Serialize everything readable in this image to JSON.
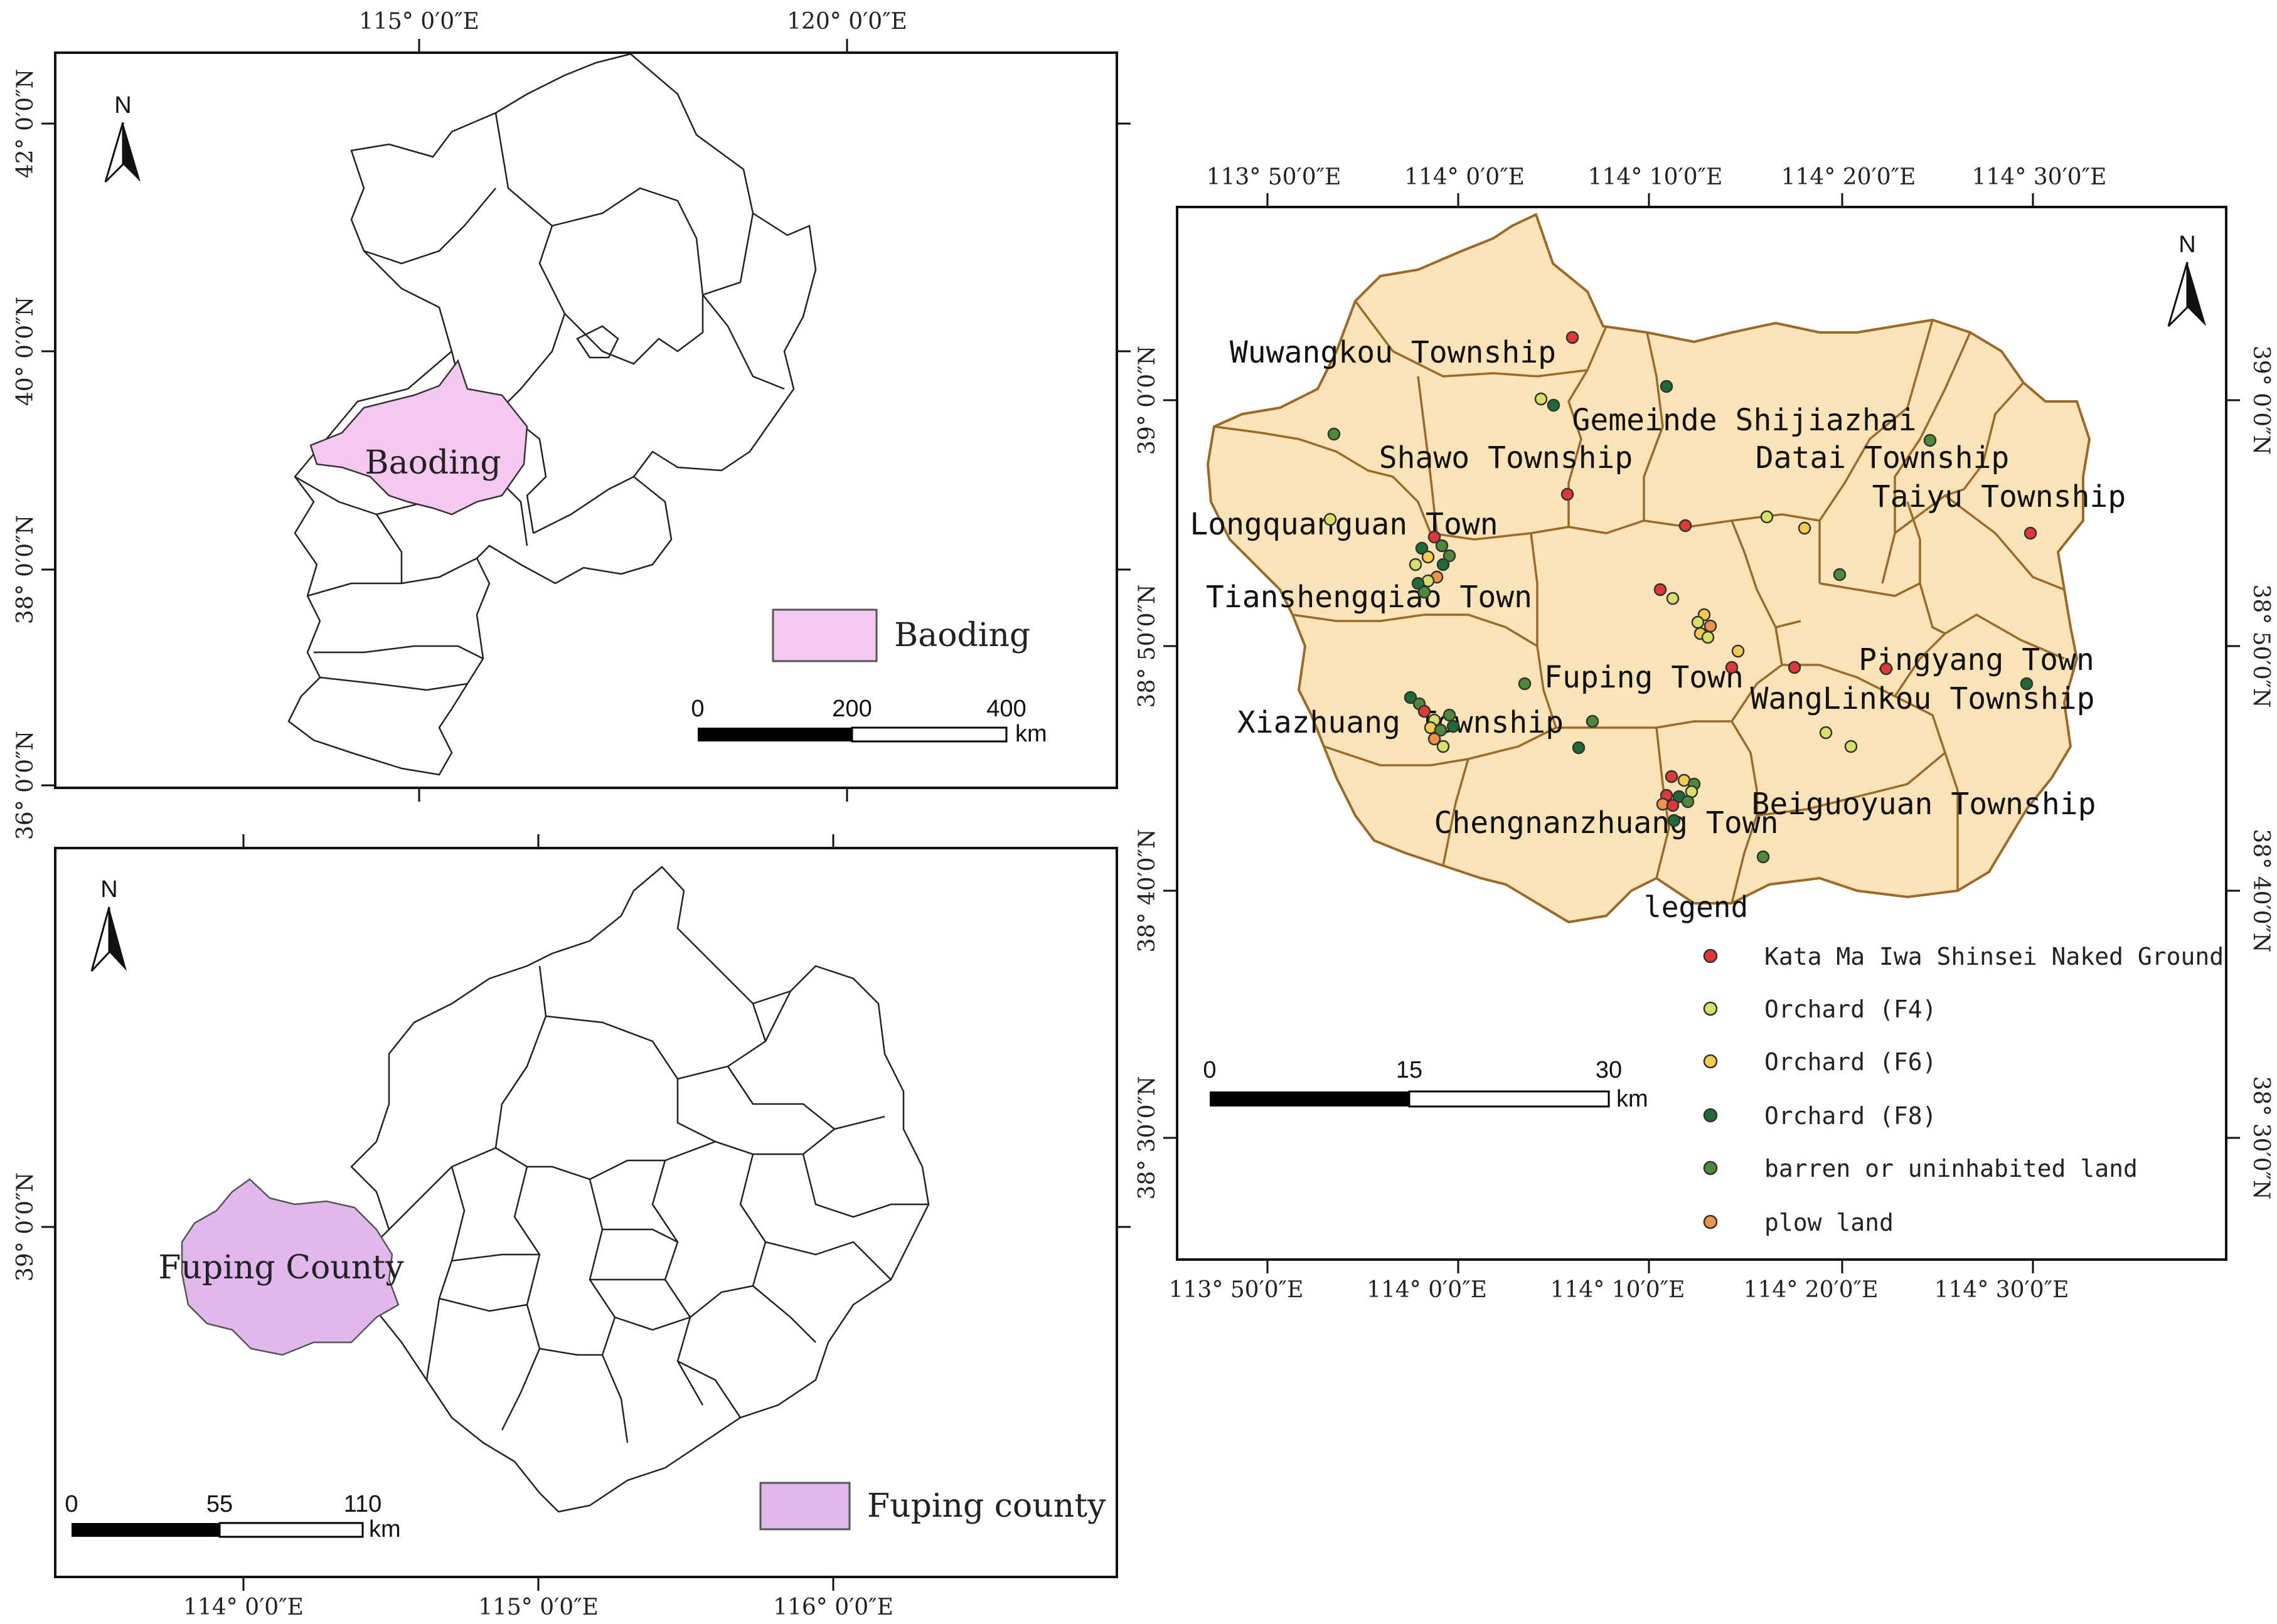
{
  "map_top_left": {
    "lon_ticks": [
      "115° 0′0″E",
      "120° 0′0″E"
    ],
    "lat_ticks": [
      "42° 0′0″N",
      "40° 0′0″N",
      "38° 0′0″N",
      "36° 0′0″N"
    ],
    "highlight_label": "Baoding",
    "legend_label": "Baoding",
    "legend_color": "#f5c8f0",
    "scale": {
      "ticks": [
        "0",
        "200",
        "400"
      ],
      "unit": "km"
    },
    "north_label": "N"
  },
  "map_bottom_left": {
    "lon_ticks": [
      "114° 0′0″E",
      "115° 0′0″E",
      "116° 0′0″E"
    ],
    "lat_ticks": [
      "39° 0′0″N"
    ],
    "highlight_label": "Fuping County",
    "legend_label": "Fuping county",
    "legend_color": "#e0b8ee",
    "scale": {
      "ticks": [
        "0",
        "55",
        "110"
      ],
      "unit": "km"
    },
    "north_label": "N"
  },
  "map_right": {
    "lon_ticks": [
      "113° 50′0″E",
      "114° 0′0″E",
      "114° 10′0″E",
      "114° 20′0″E",
      "114° 30′0″E"
    ],
    "lat_ticks": [
      "39° 0′0″N",
      "38° 50′0″N",
      "38° 40′0″N",
      "38° 30′0″N"
    ],
    "fill_color": "#fbe3b8",
    "border_color": "#9a6a2a",
    "towns": [
      "Wuwangkou Township",
      "Gemeinde Shijiazhai",
      "Shawo Township",
      "Datai Township",
      "Taiyu Township",
      "Longquanguan Town",
      "Tianshengqiao Town",
      "Fuping Town",
      "Pingyang Town",
      "WangLinkou Township",
      "Xiazhuang Township",
      "Beiguoyuan Township",
      "Chengnanzhuang Town"
    ],
    "legend_title": "legend",
    "legend_items": [
      {
        "label": "Kata Ma Iwa Shinsei Naked Ground",
        "color": "#e0373a"
      },
      {
        "label": "Orchard (F4)",
        "color": "#d8e06a"
      },
      {
        "label": "Orchard (F6)",
        "color": "#f3cc4d"
      },
      {
        "label": "Orchard (F8)",
        "color": "#1f6b35"
      },
      {
        "label": "barren or uninhabited land",
        "color": "#4c8a38"
      },
      {
        "label": "plow land",
        "color": "#f0924a"
      }
    ],
    "scale": {
      "ticks": [
        "0",
        "15",
        "30"
      ],
      "unit": "km"
    },
    "north_label": "N"
  }
}
